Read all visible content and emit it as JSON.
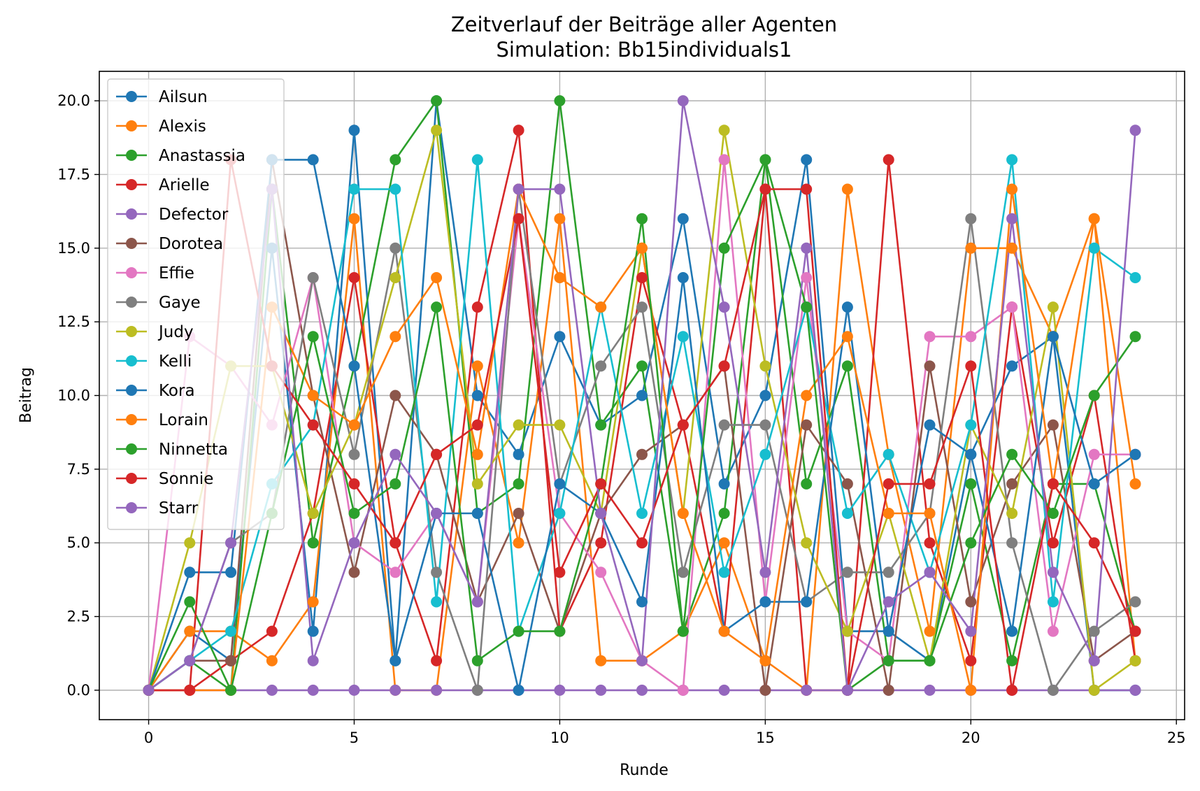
{
  "chart_data": {
    "type": "line",
    "title": "Zeitverlauf der Beiträge aller Agenten",
    "subtitle": "Simulation: Bb15individuals1",
    "xlabel": "Runde",
    "ylabel": "Beitrag",
    "xlim": [
      -1.2,
      25.2
    ],
    "ylim": [
      -1,
      21
    ],
    "xticks": [
      0,
      5,
      10,
      15,
      20,
      25
    ],
    "yticks": [
      0.0,
      2.5,
      5.0,
      7.5,
      10.0,
      12.5,
      15.0,
      17.5,
      20.0
    ],
    "ytick_labels": [
      "0.0",
      "2.5",
      "5.0",
      "7.5",
      "10.0",
      "12.5",
      "15.0",
      "17.5",
      "20.0"
    ],
    "grid": true,
    "legend_position": "upper-left",
    "marker": "circle",
    "x": [
      0,
      1,
      2,
      3,
      4,
      5,
      6,
      7,
      8,
      9,
      10,
      11,
      12,
      13,
      14,
      15,
      16,
      17,
      18,
      19,
      20,
      21,
      22,
      23,
      24
    ],
    "series": [
      {
        "name": "Ailsun",
        "color": "#1f77b4",
        "values": [
          0,
          2,
          1,
          15,
          2,
          19,
          1,
          20,
          10,
          8,
          12,
          9,
          10,
          16,
          7,
          10,
          18,
          2,
          2,
          1,
          8,
          11,
          12,
          0,
          0
        ]
      },
      {
        "name": "Alexis",
        "color": "#ff7f0e",
        "values": [
          0,
          2,
          2,
          1,
          3,
          16,
          0,
          0,
          11,
          5,
          16,
          1,
          1,
          2,
          5,
          1,
          0,
          17,
          8,
          2,
          15,
          15,
          12,
          16,
          1
        ]
      },
      {
        "name": "Anastassia",
        "color": "#2ca02c",
        "values": [
          0,
          1,
          0,
          17,
          5,
          11,
          18,
          20,
          6,
          7,
          20,
          9,
          11,
          2,
          6,
          18,
          7,
          11,
          1,
          1,
          7,
          1,
          7,
          7,
          2
        ]
      },
      {
        "name": "Arielle",
        "color": "#d62728",
        "values": [
          0,
          0,
          1,
          2,
          6,
          14,
          5,
          1,
          13,
          19,
          2,
          5,
          14,
          9,
          2,
          17,
          0,
          0,
          18,
          5,
          1,
          13,
          5,
          10,
          1
        ]
      },
      {
        "name": "Defector",
        "color": "#9467bd",
        "values": [
          0,
          0,
          0,
          0,
          0,
          0,
          0,
          0,
          0,
          0,
          0,
          0,
          0,
          0,
          0,
          0,
          0,
          0,
          0,
          0,
          0,
          0,
          0,
          0,
          0
        ]
      },
      {
        "name": "Dorotea",
        "color": "#8c564b",
        "values": [
          0,
          1,
          1,
          18,
          10,
          4,
          10,
          8,
          3,
          6,
          2,
          6,
          8,
          9,
          11,
          0,
          9,
          7,
          0,
          11,
          3,
          7,
          9,
          1,
          2
        ]
      },
      {
        "name": "Effie",
        "color": "#e377c2",
        "values": [
          0,
          12,
          11,
          9,
          14,
          5,
          4,
          6,
          3,
          16,
          6,
          4,
          1,
          0,
          18,
          3,
          14,
          2,
          1,
          12,
          12,
          13,
          2,
          8,
          8
        ]
      },
      {
        "name": "Gaye",
        "color": "#7f7f7f",
        "values": [
          0,
          1,
          5,
          6,
          14,
          8,
          15,
          4,
          0,
          17,
          7,
          11,
          13,
          4,
          9,
          9,
          3,
          4,
          4,
          6,
          16,
          5,
          0,
          2,
          3
        ]
      },
      {
        "name": "Judy",
        "color": "#bcbd22",
        "values": [
          0,
          5,
          11,
          11,
          6,
          9,
          14,
          19,
          7,
          9,
          9,
          6,
          15,
          6,
          19,
          11,
          5,
          2,
          6,
          1,
          9,
          6,
          13,
          0,
          1
        ]
      },
      {
        "name": "Kelli",
        "color": "#17becf",
        "values": [
          0,
          1,
          2,
          7,
          9,
          17,
          17,
          3,
          18,
          2,
          6,
          13,
          6,
          12,
          4,
          8,
          13,
          6,
          8,
          4,
          9,
          18,
          3,
          15,
          14
        ]
      },
      {
        "name": "Kora",
        "color": "#1f77b4",
        "values": [
          0,
          4,
          4,
          18,
          18,
          11,
          1,
          6,
          6,
          0,
          7,
          6,
          3,
          14,
          2,
          3,
          3,
          13,
          2,
          9,
          8,
          2,
          12,
          7,
          8
        ]
      },
      {
        "name": "Lorain",
        "color": "#ff7f0e",
        "values": [
          0,
          0,
          0,
          13,
          10,
          9,
          12,
          14,
          8,
          17,
          14,
          13,
          15,
          6,
          2,
          1,
          10,
          12,
          6,
          6,
          0,
          17,
          7,
          16,
          7
        ]
      },
      {
        "name": "Ninnetta",
        "color": "#2ca02c",
        "values": [
          0,
          3,
          0,
          6,
          12,
          6,
          7,
          13,
          1,
          2,
          2,
          7,
          16,
          2,
          15,
          18,
          13,
          0,
          1,
          1,
          5,
          8,
          6,
          10,
          12
        ]
      },
      {
        "name": "Sonnie",
        "color": "#d62728",
        "values": [
          0,
          0,
          18,
          11,
          9,
          7,
          5,
          8,
          9,
          16,
          4,
          7,
          5,
          9,
          11,
          17,
          17,
          0,
          7,
          7,
          11,
          0,
          7,
          5,
          2
        ]
      },
      {
        "name": "Starr",
        "color": "#9467bd",
        "values": [
          0,
          1,
          5,
          17,
          1,
          5,
          8,
          6,
          3,
          17,
          17,
          6,
          1,
          20,
          13,
          4,
          15,
          0,
          3,
          4,
          2,
          16,
          4,
          1,
          19
        ]
      }
    ]
  }
}
